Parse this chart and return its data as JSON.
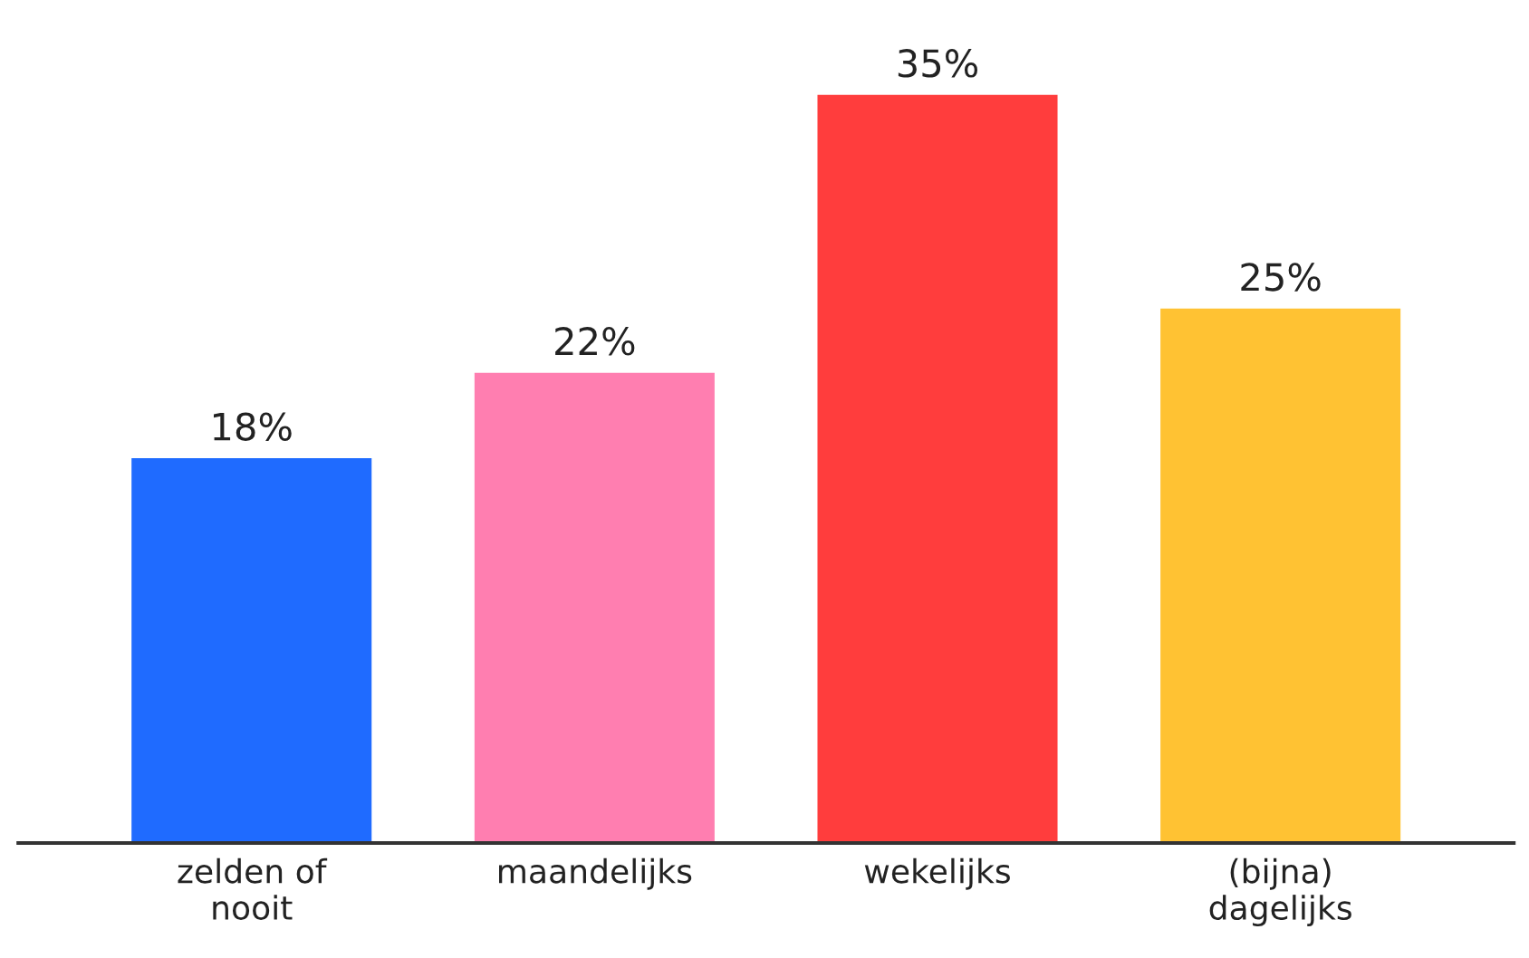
{
  "chart_data": {
    "type": "bar",
    "categories": [
      "zelden of\nnooit",
      "maandelijks",
      "wekelijks",
      "(bijna)\ndagelijks"
    ],
    "values": [
      18,
      22,
      35,
      25
    ],
    "colors": [
      "#1f6bff",
      "#ff7eb0",
      "#ff3d3d",
      "#ffc233"
    ],
    "value_labels": [
      "18%",
      "22%",
      "35%",
      "25%"
    ],
    "grid": false,
    "legend": false
  }
}
